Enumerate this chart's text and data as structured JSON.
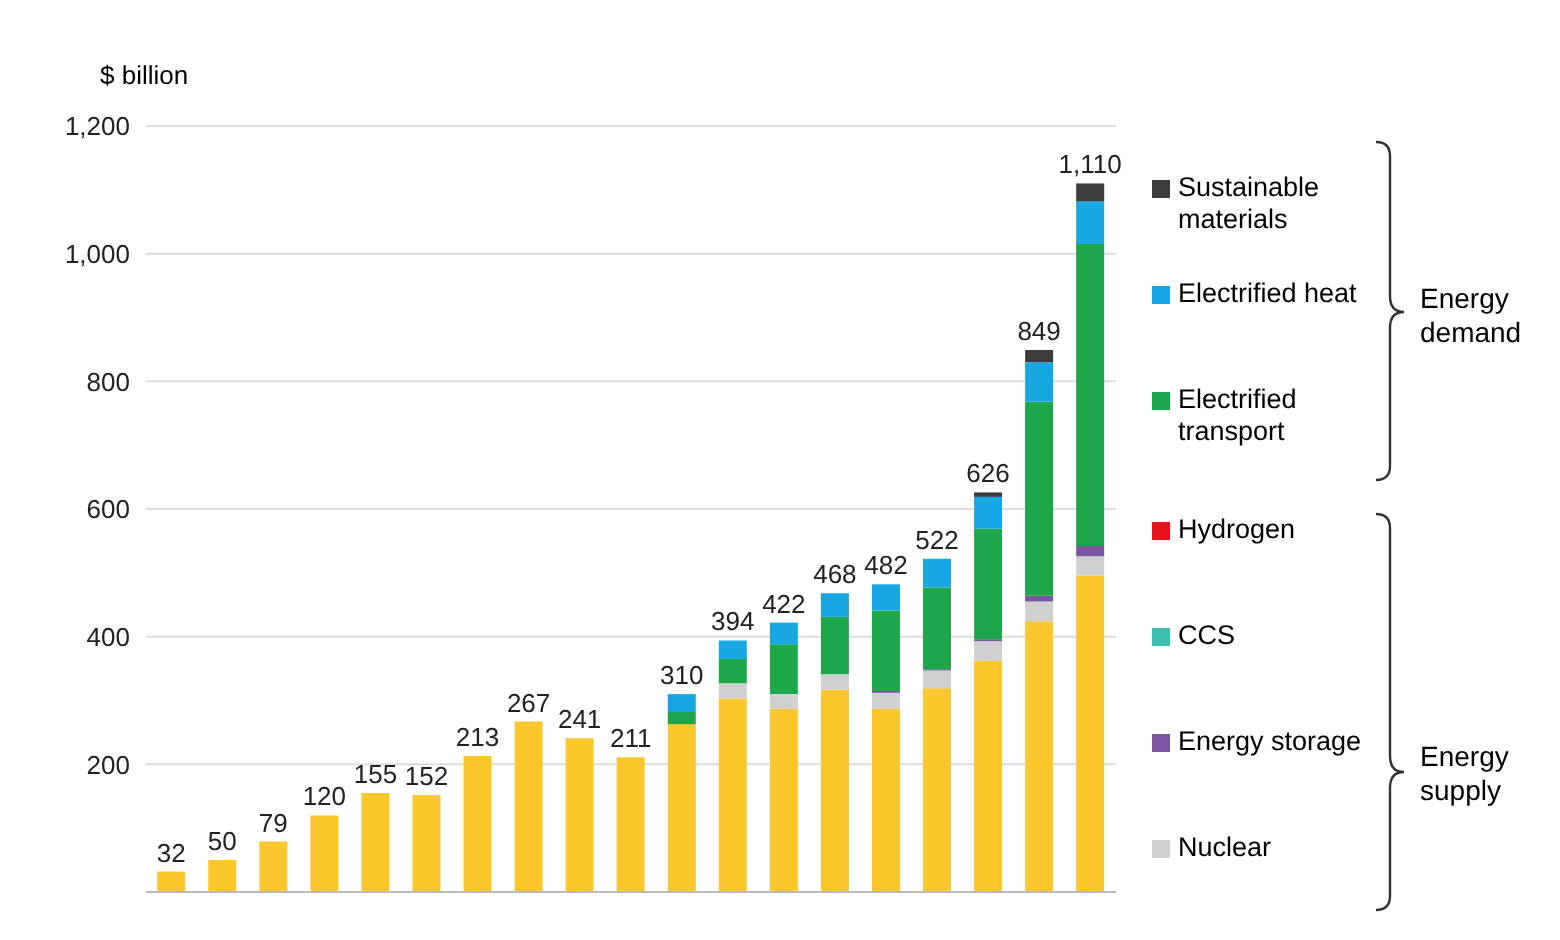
{
  "chart_data": {
    "type": "bar",
    "stacked": true,
    "ylabel": "$ billion",
    "categories": [
      null,
      null,
      null,
      null,
      null,
      null,
      null,
      null,
      null,
      null,
      null,
      null,
      null,
      null,
      null,
      null,
      null,
      null,
      null
    ],
    "series": [
      {
        "color": "#fcc62d",
        "values": [
          32,
          50,
          79,
          120,
          155,
          152,
          213,
          267,
          241,
          211,
          263,
          303,
          287,
          317,
          287,
          319,
          362,
          424,
          496
        ]
      },
      {
        "name": "Nuclear",
        "color": "#d0d0d0",
        "values": [
          0,
          0,
          0,
          0,
          0,
          0,
          0,
          0,
          0,
          0,
          0,
          24,
          23,
          24,
          25,
          28,
          31,
          31,
          30
        ]
      },
      {
        "name": "Energy storage",
        "color": "#7b57a3",
        "values": [
          0,
          0,
          0,
          0,
          0,
          0,
          0,
          0,
          0,
          0,
          0,
          0,
          0,
          0,
          3,
          2,
          3,
          9,
          16
        ]
      },
      {
        "name": "CCS",
        "color": "#3cbfae",
        "values": [
          0,
          0,
          0,
          0,
          0,
          0,
          0,
          0,
          0,
          0,
          0,
          0,
          0,
          0,
          0,
          0,
          0,
          0,
          0
        ]
      },
      {
        "name": "Hydrogen",
        "color": "#e8141b",
        "values": [
          0,
          0,
          0,
          0,
          0,
          0,
          0,
          0,
          0,
          0,
          0,
          0,
          0,
          0,
          0,
          0,
          0,
          0,
          0
        ]
      },
      {
        "name": "Electrified transport",
        "color": "#1ea74a",
        "values": [
          0,
          0,
          0,
          0,
          0,
          0,
          0,
          0,
          0,
          0,
          19,
          38,
          78,
          90,
          126,
          128,
          173,
          304,
          473
        ]
      },
      {
        "name": "Electrified heat",
        "color": "#17a8e3",
        "values": [
          0,
          0,
          0,
          0,
          0,
          0,
          0,
          0,
          0,
          0,
          28,
          29,
          34,
          37,
          41,
          45,
          50,
          62,
          67
        ]
      },
      {
        "name": "Sustainable materials",
        "color": "#3c3c3c",
        "values": [
          0,
          0,
          0,
          0,
          0,
          0,
          0,
          0,
          0,
          0,
          0,
          0,
          0,
          0,
          0,
          0,
          7,
          19,
          28
        ]
      }
    ],
    "totals": [
      "32",
      "50",
      "79",
      "120",
      "155",
      "152",
      "213",
      "267",
      "241",
      "211",
      "310",
      "394",
      "422",
      "468",
      "482",
      "522",
      "626",
      "849",
      "1,110"
    ],
    "annotations": [
      "Energy demand",
      "Energy supply"
    ],
    "ylim": [
      0,
      1200
    ],
    "yticks": [
      200,
      400,
      600,
      800,
      {
        "value": 1000,
        "label": "1,000"
      },
      {
        "value": 1200,
        "label": "1,200"
      }
    ],
    "grid": "y",
    "legend": "right",
    "tick_labels": "y"
  }
}
